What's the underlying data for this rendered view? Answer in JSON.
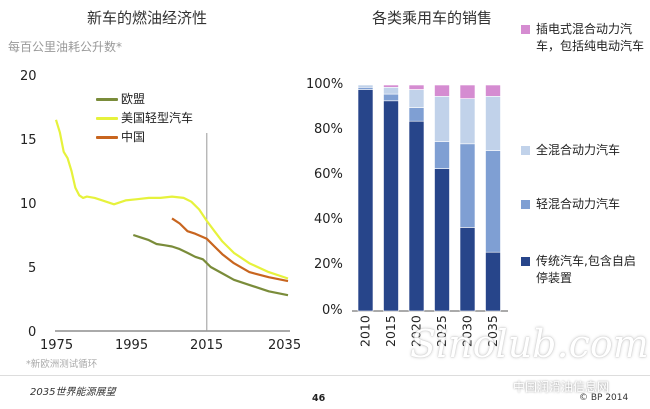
{
  "chart_data": [
    {
      "type": "line",
      "title": "新车的燃油经济性",
      "subtitle": "每百公里油耗公升数*",
      "xlim": [
        1975,
        2035
      ],
      "ylim": [
        0,
        20
      ],
      "xticks": [
        "1975",
        "1995",
        "2015",
        "2035"
      ],
      "yticks": [
        "0",
        "5",
        "10",
        "15",
        "20"
      ],
      "vline": 2014,
      "legend_position": "top-center",
      "series": [
        {
          "name": "欧盟",
          "color": "#7a8c3a",
          "x": [
            1995,
            1997,
            1999,
            2001,
            2003,
            2005,
            2007,
            2009,
            2011,
            2013,
            2015,
            2018,
            2021,
            2025,
            2030,
            2035
          ],
          "y": [
            7.5,
            7.3,
            7.1,
            6.8,
            6.7,
            6.6,
            6.4,
            6.1,
            5.8,
            5.6,
            5.0,
            4.5,
            4.0,
            3.6,
            3.1,
            2.8
          ]
        },
        {
          "name": "美国轻型汽车",
          "color": "#e6f23c",
          "x": [
            1975,
            1976,
            1977,
            1978,
            1979,
            1980,
            1981,
            1982,
            1983,
            1985,
            1987,
            1990,
            1993,
            1996,
            1999,
            2002,
            2005,
            2008,
            2010,
            2012,
            2014,
            2016,
            2018,
            2021,
            2025,
            2030,
            2035
          ],
          "y": [
            16.5,
            15.5,
            14.0,
            13.5,
            12.5,
            11.2,
            10.6,
            10.4,
            10.5,
            10.4,
            10.2,
            9.9,
            10.2,
            10.3,
            10.4,
            10.4,
            10.5,
            10.4,
            10.1,
            9.5,
            8.6,
            7.8,
            7.0,
            6.1,
            5.3,
            4.6,
            4.1
          ]
        },
        {
          "name": "中国",
          "color": "#c8651f",
          "x": [
            2005,
            2007,
            2009,
            2011,
            2014,
            2016,
            2018,
            2021,
            2025,
            2030,
            2035
          ],
          "y": [
            8.8,
            8.4,
            7.8,
            7.6,
            7.2,
            6.6,
            6.0,
            5.3,
            4.6,
            4.2,
            3.9
          ]
        }
      ]
    },
    {
      "type": "bar",
      "stacked": true,
      "title": "各类乘用车的销售",
      "categories": [
        "2010",
        "2015",
        "2020",
        "2025",
        "2030",
        "2035"
      ],
      "yticks": [
        "0%",
        "20%",
        "40%",
        "60%",
        "80%",
        "100%"
      ],
      "ylim": [
        0,
        100
      ],
      "legend_position": "right",
      "series": [
        {
          "name": "传统汽车,包含自启停装置",
          "color": "#27458a",
          "values": [
            98,
            93,
            84,
            63,
            37,
            26
          ]
        },
        {
          "name": "轻混合动力汽车",
          "color": "#7f9fd3",
          "values": [
            1,
            3,
            6,
            12,
            37,
            45
          ]
        },
        {
          "name": "全混合动力汽车",
          "color": "#c1d2ea",
          "values": [
            1,
            3,
            8,
            20,
            20,
            24
          ]
        },
        {
          "name": "插电式混合动力汽车，包括纯电动汽车",
          "color": "#d58cd1",
          "values": [
            0,
            1,
            2,
            5,
            6,
            5
          ]
        }
      ]
    }
  ],
  "footnote": "*新欧洲测试循环",
  "footer": {
    "left": "2035世界能源展望",
    "page": "46",
    "copyright": "© BP 2014"
  },
  "watermark": {
    "logo": "Sinolub.com",
    "text": "中国润滑油信息网"
  }
}
